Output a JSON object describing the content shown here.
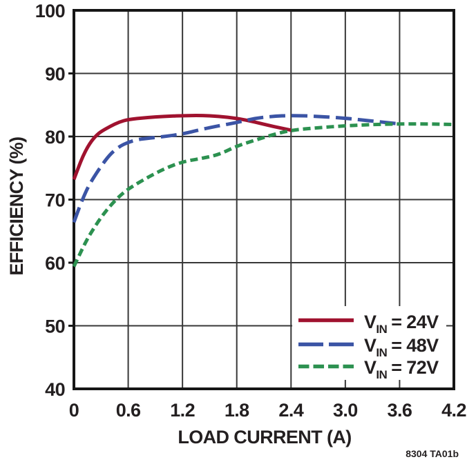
{
  "chart_data": {
    "type": "line",
    "title": "",
    "xlabel": "LOAD CURRENT (A)",
    "ylabel": "EFFICIENCY (%)",
    "footnote": "8304 TA01b",
    "xlim": [
      0,
      4.2
    ],
    "ylim": [
      40,
      100
    ],
    "grid": true,
    "x_ticks": [
      0,
      0.6,
      1.2,
      1.8,
      2.4,
      3.0,
      3.6,
      4.2
    ],
    "x_tick_labels": [
      "0",
      "0.6",
      "1.2",
      "1.8",
      "2.4",
      "3.0",
      "3.6",
      "4.2"
    ],
    "y_ticks": [
      100,
      90,
      80,
      70,
      60,
      50,
      40
    ],
    "y_tick_labels": [
      "100",
      "90",
      "80",
      "70",
      "60",
      "50",
      "40"
    ],
    "legend": {
      "position": "lower-right",
      "entries": [
        {
          "v": "V",
          "sub": "IN",
          "rest": "= 24V"
        },
        {
          "v": "V",
          "sub": "IN",
          "rest": "= 48V"
        },
        {
          "v": "V",
          "sub": "IN",
          "rest": "= 72V"
        }
      ]
    },
    "series": [
      {
        "name": "VIN = 24V",
        "vin_volts": 24,
        "color": "#A0122F",
        "line_style": "solid",
        "points": [
          [
            0,
            73.2
          ],
          [
            0.05,
            75.1
          ],
          [
            0.1,
            76.9
          ],
          [
            0.15,
            78.3
          ],
          [
            0.2,
            79.4
          ],
          [
            0.25,
            80.2
          ],
          [
            0.3,
            80.8
          ],
          [
            0.4,
            81.6
          ],
          [
            0.5,
            82.3
          ],
          [
            0.6,
            82.7
          ],
          [
            0.8,
            83.0
          ],
          [
            1.0,
            83.2
          ],
          [
            1.2,
            83.3
          ],
          [
            1.4,
            83.35
          ],
          [
            1.6,
            83.2
          ],
          [
            1.8,
            82.9
          ],
          [
            2.0,
            82.3
          ],
          [
            2.2,
            81.6
          ],
          [
            2.4,
            81.0
          ]
        ]
      },
      {
        "name": "VIN = 48V",
        "vin_volts": 48,
        "color": "#3B54A5",
        "line_style": "long-dash",
        "points": [
          [
            0,
            66.4
          ],
          [
            0.05,
            68.4
          ],
          [
            0.1,
            70.2
          ],
          [
            0.15,
            71.8
          ],
          [
            0.2,
            73.1
          ],
          [
            0.3,
            75.3
          ],
          [
            0.4,
            77.2
          ],
          [
            0.5,
            78.4
          ],
          [
            0.6,
            79.1
          ],
          [
            0.7,
            79.5
          ],
          [
            0.8,
            79.7
          ],
          [
            1.0,
            80.0
          ],
          [
            1.2,
            80.4
          ],
          [
            1.4,
            81.1
          ],
          [
            1.6,
            81.7
          ],
          [
            1.8,
            82.2
          ],
          [
            2.0,
            82.9
          ],
          [
            2.2,
            83.2
          ],
          [
            2.4,
            83.35
          ],
          [
            2.7,
            83.2
          ],
          [
            3.0,
            82.9
          ],
          [
            3.2,
            82.6
          ],
          [
            3.4,
            82.3
          ],
          [
            3.6,
            82.0
          ]
        ]
      },
      {
        "name": "VIN = 72V",
        "vin_volts": 72,
        "color": "#2C9150",
        "line_style": "short-dash",
        "points": [
          [
            0,
            59.4
          ],
          [
            0.05,
            60.9
          ],
          [
            0.1,
            62.4
          ],
          [
            0.15,
            63.8
          ],
          [
            0.2,
            65.0
          ],
          [
            0.3,
            67.2
          ],
          [
            0.4,
            69.0
          ],
          [
            0.5,
            70.5
          ],
          [
            0.6,
            71.7
          ],
          [
            0.8,
            73.4
          ],
          [
            1.0,
            74.9
          ],
          [
            1.2,
            76.0
          ],
          [
            1.4,
            76.5
          ],
          [
            1.6,
            77.1
          ],
          [
            1.8,
            78.5
          ],
          [
            2.0,
            79.4
          ],
          [
            2.2,
            80.3
          ],
          [
            2.4,
            81.0
          ],
          [
            2.7,
            81.4
          ],
          [
            3.0,
            81.7
          ],
          [
            3.3,
            81.9
          ],
          [
            3.6,
            82.0
          ],
          [
            3.9,
            82.0
          ],
          [
            4.2,
            81.9
          ]
        ]
      }
    ]
  }
}
